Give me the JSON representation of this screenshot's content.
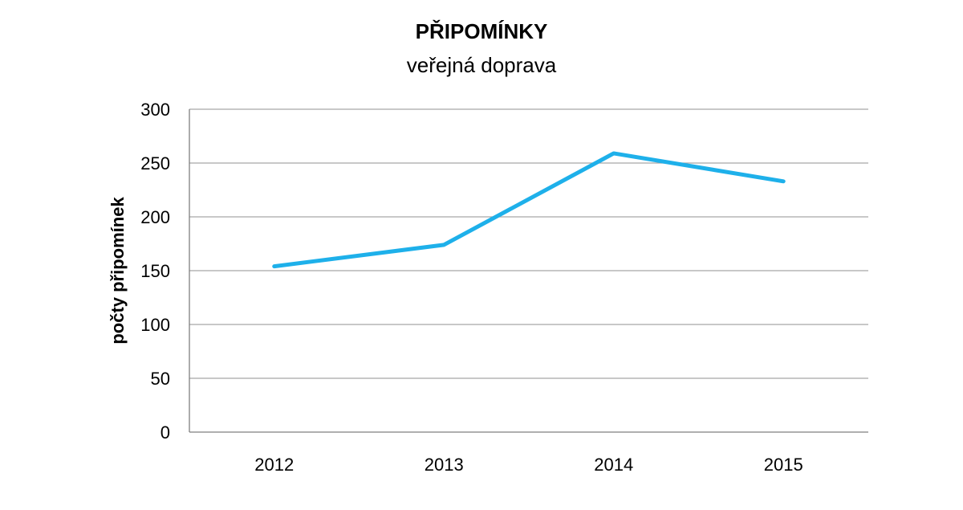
{
  "chart_data": {
    "type": "line",
    "title": "PŘIPOMÍNKY",
    "subtitle": "veřejná doprava",
    "xlabel": "",
    "ylabel": "počty připomínek",
    "categories": [
      "2012",
      "2013",
      "2014",
      "2015"
    ],
    "series": [
      {
        "values": [
          154,
          174,
          259,
          233
        ]
      }
    ],
    "ylim": [
      0,
      300
    ],
    "yticks": [
      0,
      50,
      100,
      150,
      200,
      250,
      300
    ],
    "grid": true,
    "legend": "none",
    "colors": {
      "line": "#1eb0ea",
      "grid": "#a6a6a6",
      "axis": "#7f7f7f"
    }
  }
}
